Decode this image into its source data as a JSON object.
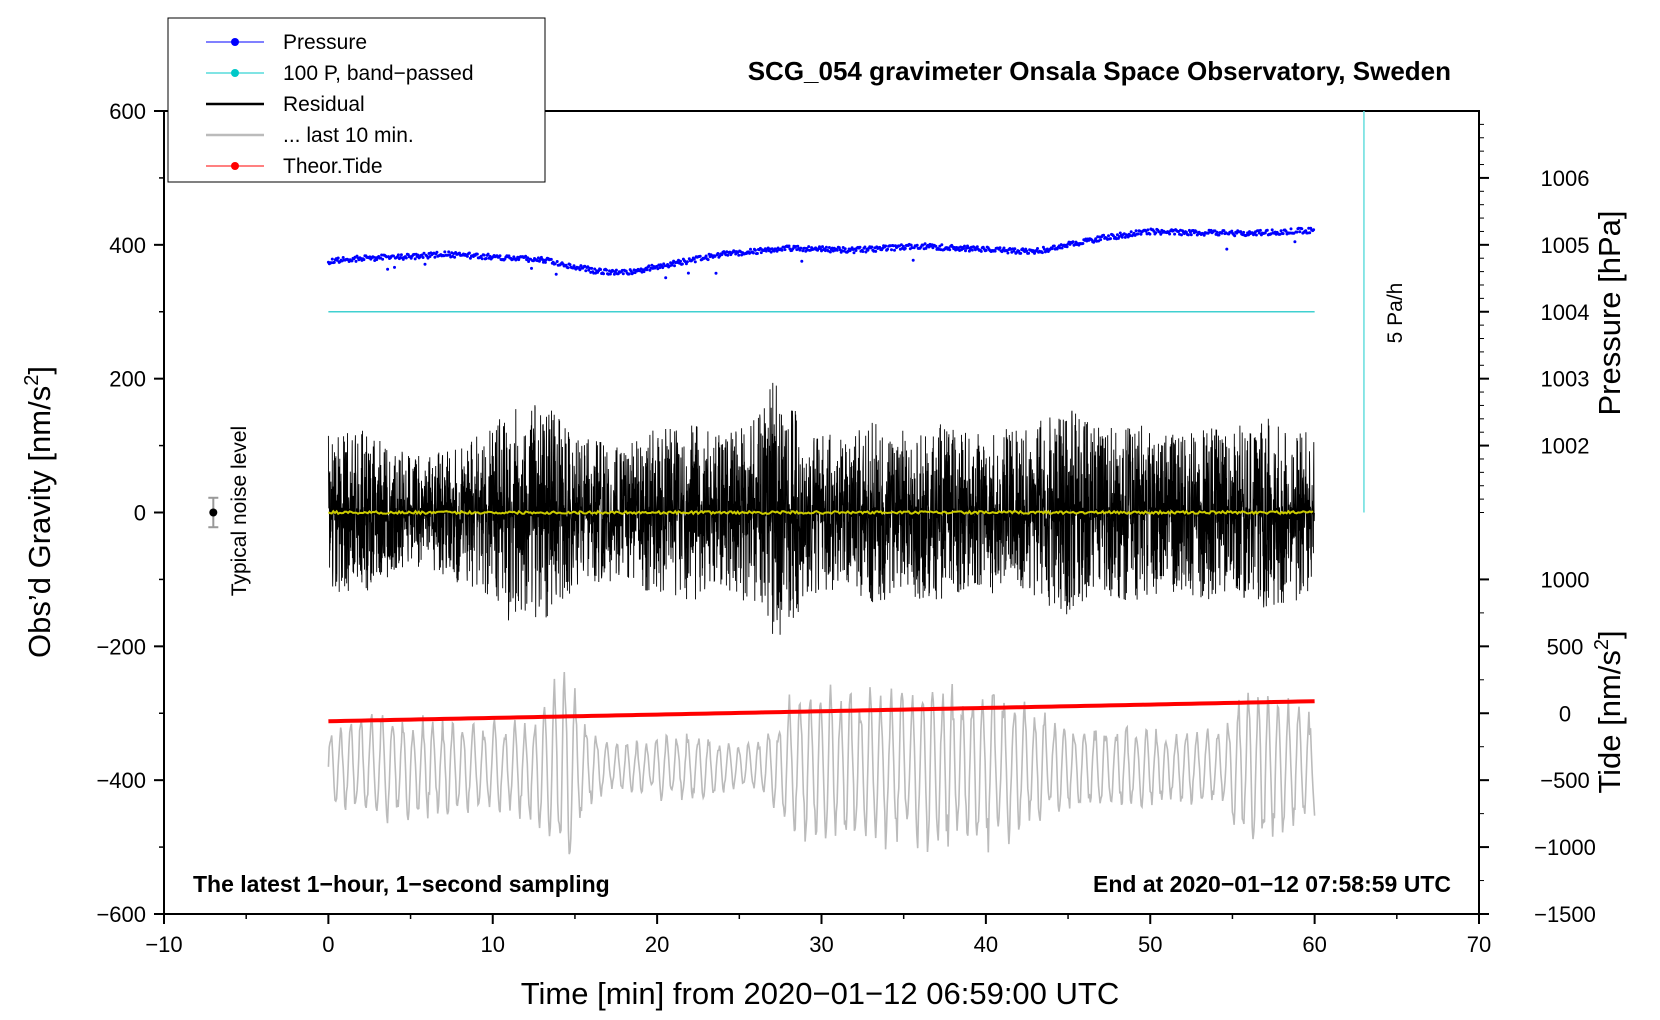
{
  "chart_data": {
    "type": "line",
    "title": "SCG_054 gravimeter Onsala Space Observatory, Sweden",
    "xlabel": "Time [min] from 2020−01−12 06:59:00 UTC",
    "ylabel_left": "Obs’d Gravity [nm/s²]",
    "ylabel_left_base": "Obs’d Gravity [nm/s",
    "ylabel_left_sup": "2",
    "ylabel_left_end": "]",
    "ylabel_right_pressure": "Pressure [hPa]",
    "ylabel_right_tide": "Tide [nm/s²]",
    "ylabel_right_tide_base": "Tide [nm/s",
    "ylabel_right_tide_sup": "2",
    "ylabel_right_tide_end": "]",
    "xlim": [
      -10,
      70
    ],
    "ylim": [
      -600,
      600
    ],
    "x_ticks": [
      -10,
      0,
      10,
      20,
      30,
      40,
      50,
      60,
      70
    ],
    "x_tick_labels": [
      "−10",
      "0",
      "10",
      "20",
      "30",
      "40",
      "50",
      "60",
      "70"
    ],
    "y_ticks": [
      -600,
      -400,
      -200,
      0,
      200,
      400,
      600
    ],
    "y_tick_labels": [
      "−600",
      "−400",
      "−200",
      "0",
      "200",
      "400",
      "600"
    ],
    "pressure_axis": {
      "gravity_at_1004_hPa": 300,
      "nm_s2_per_hPa": 100,
      "ticks": [
        1002,
        1003,
        1004,
        1005,
        1006
      ],
      "tick_labels": [
        "1002",
        "1003",
        "1004",
        "1005",
        "1006"
      ]
    },
    "tide_axis": {
      "gravity_at_0": -300,
      "nm_s2_per_unit": 0.2,
      "ticks": [
        -1500,
        -1000,
        -500,
        0,
        500,
        1000
      ],
      "tick_labels": [
        "−1500",
        "−1000",
        "−500",
        "0",
        "500",
        "1000"
      ]
    },
    "legend": {
      "position": "top-left",
      "entries": [
        {
          "label": "Pressure",
          "color": "#0000ff",
          "marker": true
        },
        {
          "label": "100 P, band−passed",
          "color": "#00c8c8",
          "marker": true
        },
        {
          "label": "Residual",
          "color": "#000000",
          "marker": false
        },
        {
          "label": "... last 10 min.",
          "color": "#bbbbbb",
          "marker": false
        },
        {
          "label": "Theor.Tide",
          "color": "#ff0000",
          "marker": true
        }
      ]
    },
    "series": [
      {
        "name": "Pressure",
        "color": "#0000ff",
        "style": "dots",
        "x": [
          0,
          2,
          5,
          7,
          10,
          13,
          16,
          18,
          21,
          24,
          28,
          32,
          36,
          40,
          43,
          47,
          50,
          53,
          56,
          60
        ],
        "y": [
          1004.75,
          1004.8,
          1004.82,
          1004.86,
          1004.82,
          1004.78,
          1004.62,
          1004.58,
          1004.72,
          1004.86,
          1004.95,
          1004.92,
          1004.98,
          1004.93,
          1004.9,
          1005.1,
          1005.2,
          1005.18,
          1005.17,
          1005.22
        ]
      },
      {
        "name": "100 P, band−passed",
        "color": "#40d0d0",
        "style": "line",
        "x": [
          0,
          60
        ],
        "y": [
          300,
          300
        ]
      },
      {
        "name": "Residual",
        "color": "#000000",
        "style": "noise",
        "x_range": [
          0,
          60
        ],
        "baseline": 0,
        "envelope_x": [
          0,
          2,
          4,
          6,
          8,
          10,
          11,
          12,
          13,
          14,
          15,
          16,
          18,
          20,
          22,
          24,
          26,
          27.5,
          29,
          31,
          33,
          35,
          37,
          39,
          41,
          43,
          45,
          47,
          49,
          51,
          53,
          55,
          57,
          59,
          60
        ],
        "envelope_y": [
          130,
          140,
          110,
          90,
          120,
          140,
          190,
          170,
          185,
          160,
          130,
          120,
          110,
          140,
          150,
          130,
          160,
          240,
          140,
          130,
          150,
          140,
          150,
          130,
          140,
          150,
          175,
          140,
          150,
          130,
          150,
          140,
          160,
          150,
          120
        ]
      },
      {
        "name": "... last 10 min.",
        "color": "#bbbbbb",
        "style": "oscillation",
        "x_range": [
          0,
          60
        ],
        "baseline": -380,
        "envelope_x": [
          0,
          3,
          6,
          9,
          12,
          13.5,
          14.5,
          15.5,
          17,
          19,
          21,
          23,
          25,
          27,
          28,
          30,
          32,
          35,
          38,
          40,
          42,
          45,
          48,
          51,
          54,
          56.5,
          58,
          60
        ],
        "envelope_y": [
          60,
          90,
          80,
          70,
          80,
          120,
          170,
          80,
          40,
          40,
          60,
          50,
          35,
          60,
          110,
          130,
          120,
          130,
          130,
          140,
          110,
          70,
          70,
          60,
          60,
          140,
          110,
          80
        ]
      },
      {
        "name": "Theor.Tide",
        "color": "#ff0000",
        "style": "line",
        "x": [
          0,
          60
        ],
        "y": [
          -60,
          90
        ]
      }
    ],
    "annotations": {
      "noise_label": "Typical noise level",
      "noise_marker": {
        "x": -7,
        "y": 0,
        "error": 22
      },
      "pressure_rate_label": "5 Pa/h",
      "pressure_rate_line": {
        "x": 63,
        "y_from": 0,
        "y_to": 600
      },
      "bottom_left_note": "The latest 1−hour, 1−second sampling",
      "bottom_right_note": "End at 2020−01−12 07:58:59 UTC"
    }
  }
}
